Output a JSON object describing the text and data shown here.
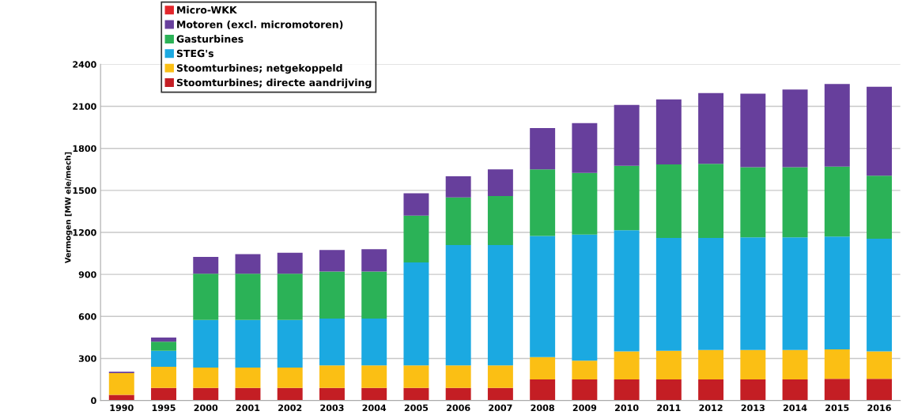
{
  "chart_data": {
    "type": "bar",
    "stacked": true,
    "ylabel": "Vermogen [MW ele/mech]",
    "categories": [
      "1990",
      "1995",
      "2000",
      "2001",
      "2002",
      "2003",
      "2004",
      "2005",
      "2006",
      "2007",
      "2008",
      "2009",
      "2010",
      "2011",
      "2012",
      "2013",
      "2014",
      "2015",
      "2016"
    ],
    "series": [
      {
        "name": "Stoomturbines; directe aandrijving",
        "color": "#c41e24",
        "values": [
          40,
          90,
          90,
          90,
          90,
          90,
          90,
          90,
          90,
          90,
          150,
          150,
          150,
          150,
          150,
          150,
          150,
          155,
          155
        ]
      },
      {
        "name": "Stoomturbines; netgekoppeld",
        "color": "#fbbf14",
        "values": [
          155,
          150,
          145,
          145,
          145,
          160,
          160,
          160,
          160,
          160,
          160,
          135,
          200,
          205,
          210,
          210,
          210,
          210,
          195
        ]
      },
      {
        "name": "STEG's",
        "color": "#1ba9e1",
        "values": [
          0,
          115,
          340,
          340,
          340,
          335,
          335,
          735,
          860,
          860,
          865,
          900,
          865,
          805,
          800,
          805,
          805,
          805,
          805
        ]
      },
      {
        "name": "Gasturbines",
        "color": "#2bb257",
        "values": [
          0,
          65,
          330,
          330,
          330,
          335,
          335,
          335,
          340,
          350,
          475,
          440,
          460,
          525,
          530,
          500,
          500,
          500,
          450
        ]
      },
      {
        "name": "Motoren (excl. micromotoren)",
        "color": "#673f9c",
        "values": [
          10,
          30,
          120,
          140,
          150,
          155,
          160,
          160,
          150,
          190,
          295,
          355,
          435,
          465,
          505,
          525,
          555,
          590,
          635
        ]
      },
      {
        "name": "Micro-WKK",
        "color": "#e3262b",
        "values": [
          0,
          0,
          0,
          0,
          0,
          0,
          0,
          0,
          0,
          0,
          0,
          0,
          0,
          0,
          0,
          0,
          0,
          0,
          0
        ]
      }
    ],
    "ylim": [
      0,
      2400
    ],
    "yticks": [
      0,
      300,
      600,
      900,
      1200,
      1500,
      1800,
      2100,
      2400
    ],
    "grid": "y",
    "legend": "top left"
  }
}
